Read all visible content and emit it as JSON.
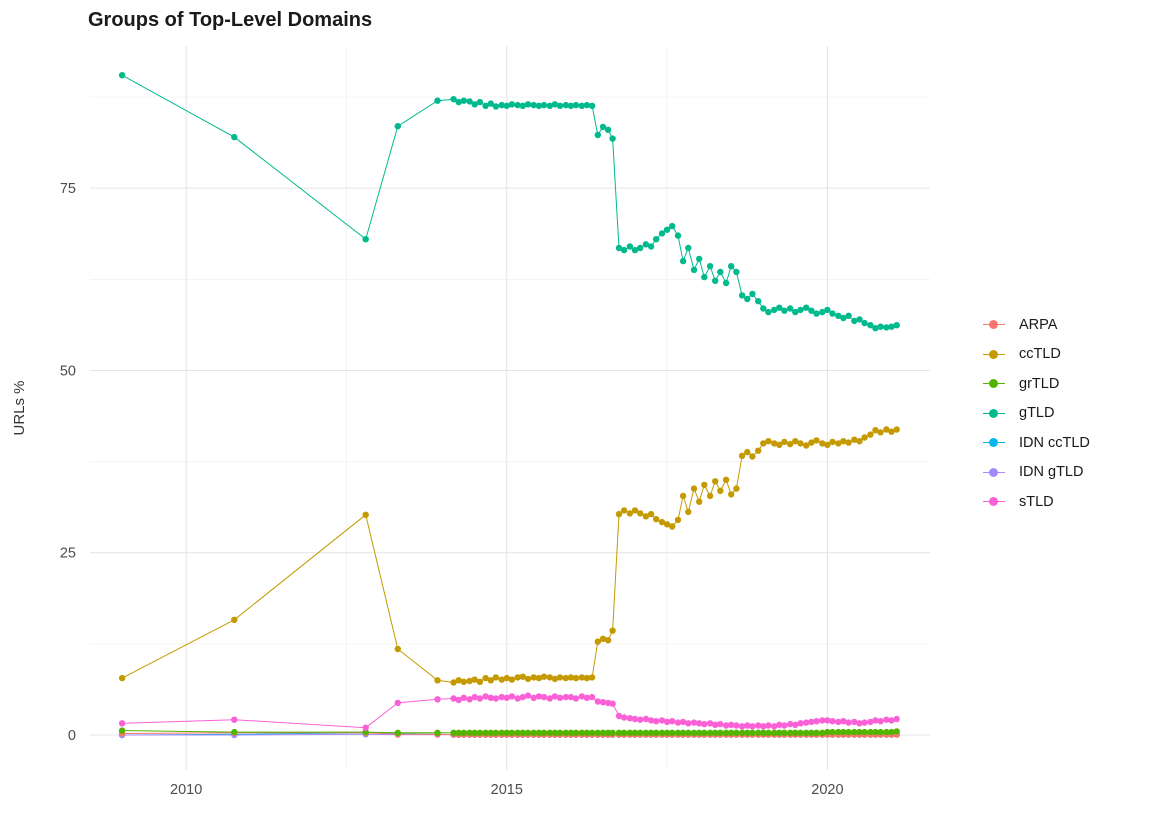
{
  "chart_data": {
    "type": "line",
    "title": "Groups of Top-Level Domains",
    "xlabel": "",
    "ylabel": "URLs %",
    "x_ticks": [
      2010,
      2015,
      2020
    ],
    "y_ticks": [
      0,
      25,
      50,
      75
    ],
    "x_minor_gridlines": [
      2012.5,
      2017.5
    ],
    "y_minor_gridlines": [
      12.5,
      37.5,
      62.5,
      87.5
    ],
    "xlim": [
      2008.5,
      2021.6
    ],
    "ylim": [
      -4.8,
      94.5
    ],
    "grid": true,
    "legend_position": "right",
    "marker": "circle",
    "x": [
      2009.0,
      2010.75,
      2012.8,
      2013.3,
      2013.92,
      2014.17,
      2014.25,
      2014.33,
      2014.42,
      2014.5,
      2014.58,
      2014.67,
      2014.75,
      2014.83,
      2014.92,
      2015.0,
      2015.08,
      2015.17,
      2015.25,
      2015.33,
      2015.42,
      2015.5,
      2015.58,
      2015.67,
      2015.75,
      2015.83,
      2015.92,
      2016.0,
      2016.08,
      2016.17,
      2016.25,
      2016.33,
      2016.42,
      2016.5,
      2016.58,
      2016.65,
      2016.75,
      2016.83,
      2016.92,
      2017.0,
      2017.08,
      2017.17,
      2017.25,
      2017.33,
      2017.42,
      2017.5,
      2017.58,
      2017.67,
      2017.75,
      2017.83,
      2017.92,
      2018.0,
      2018.08,
      2018.17,
      2018.25,
      2018.33,
      2018.42,
      2018.5,
      2018.58,
      2018.67,
      2018.75,
      2018.83,
      2018.92,
      2019.0,
      2019.08,
      2019.17,
      2019.25,
      2019.33,
      2019.42,
      2019.5,
      2019.58,
      2019.67,
      2019.75,
      2019.83,
      2019.92,
      2020.0,
      2020.08,
      2020.17,
      2020.25,
      2020.33,
      2020.42,
      2020.5,
      2020.58,
      2020.67,
      2020.75,
      2020.83,
      2020.92,
      2021.0,
      2021.08
    ],
    "series": [
      {
        "name": "ARPA",
        "color": "#F8766D",
        "values": [
          0.2,
          0.3,
          0.3,
          0.1,
          0.1,
          0.05,
          0.05,
          0.05,
          0.05,
          0.05,
          0.05,
          0.05,
          0.05,
          0.05,
          0.05,
          0.05,
          0.05,
          0.05,
          0.05,
          0.05,
          0.05,
          0.05,
          0.05,
          0.05,
          0.05,
          0.05,
          0.05,
          0.05,
          0.05,
          0.05,
          0.05,
          0.05,
          0.05,
          0.05,
          0.05,
          0.05,
          0.05,
          0.05,
          0.05,
          0.05,
          0.05,
          0.05,
          0.05,
          0.05,
          0.05,
          0.05,
          0.05,
          0.05,
          0.05,
          0.05,
          0.05,
          0.05,
          0.05,
          0.05,
          0.05,
          0.05,
          0.05,
          0.05,
          0.05,
          0.05,
          0.05,
          0.05,
          0.05,
          0.05,
          0.05,
          0.05,
          0.05,
          0.05,
          0.05,
          0.05,
          0.05,
          0.05,
          0.05,
          0.05,
          0.05,
          0.05,
          0.05,
          0.05,
          0.05,
          0.05,
          0.05,
          0.05,
          0.05,
          0.05,
          0.05,
          0.05,
          0.05,
          0.05,
          0.05
        ]
      },
      {
        "name": "ccTLD",
        "color": "#C49A00",
        "values": [
          7.8,
          15.8,
          30.2,
          11.8,
          7.5,
          7.2,
          7.5,
          7.3,
          7.4,
          7.6,
          7.3,
          7.8,
          7.5,
          7.9,
          7.6,
          7.8,
          7.6,
          7.9,
          8,
          7.7,
          7.9,
          7.8,
          8,
          7.9,
          7.7,
          7.9,
          7.8,
          7.9,
          7.8,
          7.9,
          7.8,
          7.9,
          12.8,
          13.2,
          13,
          14.3,
          30.3,
          30.8,
          30.4,
          30.8,
          30.4,
          30,
          30.3,
          29.6,
          29.2,
          28.9,
          28.6,
          29.5,
          32.8,
          30.6,
          33.8,
          32,
          34.3,
          32.8,
          34.8,
          33.5,
          35,
          33,
          33.8,
          38.3,
          38.8,
          38.2,
          39,
          40,
          40.3,
          40,
          39.8,
          40.2,
          39.9,
          40.3,
          40,
          39.7,
          40.1,
          40.4,
          40,
          39.8,
          40.2,
          40,
          40.3,
          40.1,
          40.5,
          40.3,
          40.8,
          41.2,
          41.8,
          41.5,
          41.9,
          41.6,
          41.9
        ]
      },
      {
        "name": "grTLD",
        "color": "#53B400",
        "values": [
          0.6,
          0.4,
          0.4,
          0.3,
          0.3,
          0.3,
          0.3,
          0.3,
          0.3,
          0.3,
          0.3,
          0.3,
          0.3,
          0.3,
          0.3,
          0.3,
          0.3,
          0.3,
          0.3,
          0.3,
          0.3,
          0.3,
          0.3,
          0.3,
          0.3,
          0.3,
          0.3,
          0.3,
          0.3,
          0.3,
          0.3,
          0.3,
          0.3,
          0.3,
          0.3,
          0.3,
          0.3,
          0.3,
          0.3,
          0.3,
          0.3,
          0.3,
          0.3,
          0.3,
          0.3,
          0.3,
          0.3,
          0.3,
          0.3,
          0.3,
          0.3,
          0.3,
          0.3,
          0.3,
          0.3,
          0.3,
          0.3,
          0.3,
          0.3,
          0.3,
          0.3,
          0.3,
          0.3,
          0.3,
          0.3,
          0.3,
          0.3,
          0.3,
          0.3,
          0.3,
          0.3,
          0.3,
          0.3,
          0.3,
          0.3,
          0.4,
          0.4,
          0.4,
          0.4,
          0.4,
          0.4,
          0.4,
          0.4,
          0.4,
          0.4,
          0.4,
          0.4,
          0.4,
          0.5
        ]
      },
      {
        "name": "gTLD",
        "color": "#00BA8E",
        "values": [
          90.5,
          82,
          68,
          83.5,
          87,
          87.2,
          86.8,
          87,
          86.9,
          86.5,
          86.8,
          86.3,
          86.6,
          86.2,
          86.4,
          86.3,
          86.5,
          86.4,
          86.3,
          86.5,
          86.4,
          86.3,
          86.4,
          86.3,
          86.5,
          86.3,
          86.4,
          86.3,
          86.4,
          86.3,
          86.4,
          86.3,
          82.3,
          83.4,
          83,
          81.8,
          66.8,
          66.5,
          67,
          66.5,
          66.8,
          67.3,
          67,
          68,
          68.8,
          69.3,
          69.8,
          68.5,
          65,
          66.8,
          63.8,
          65.3,
          62.8,
          64.3,
          62.3,
          63.5,
          62,
          64.3,
          63.5,
          60.3,
          59.8,
          60.5,
          59.5,
          58.5,
          58,
          58.3,
          58.6,
          58.2,
          58.5,
          58,
          58.3,
          58.6,
          58.2,
          57.8,
          58,
          58.3,
          57.8,
          57.5,
          57.2,
          57.5,
          56.8,
          57,
          56.5,
          56.2,
          55.8,
          56,
          55.9,
          56,
          56.2
        ]
      },
      {
        "name": "IDN ccTLD",
        "color": "#00B6EB",
        "values": [
          0,
          0.1,
          0.3,
          0.2,
          0.1,
          0.05,
          0.05,
          0.05,
          0.05,
          0.05,
          0.05,
          0.05,
          0.05,
          0.05,
          0.05,
          0.05,
          0.05,
          0.05,
          0.05,
          0.05,
          0.05,
          0.05,
          0.05,
          0.05,
          0.05,
          0.05,
          0.05,
          0.05,
          0.05,
          0.05,
          0.05,
          0.05,
          0.05,
          0.05,
          0.05,
          0.05,
          0.05,
          0.05,
          0.05,
          0.05,
          0.05,
          0.05,
          0.05,
          0.05,
          0.05,
          0.05,
          0.05,
          0.05,
          0.05,
          0.05,
          0.05,
          0.05,
          0.05,
          0.05,
          0.05,
          0.05,
          0.05,
          0.05,
          0.05,
          0.05,
          0.05,
          0.05,
          0.05,
          0.05,
          0.05,
          0.05,
          0.05,
          0.05,
          0.05,
          0.05,
          0.05,
          0.05,
          0.05,
          0.05,
          0.05,
          0.05,
          0.05,
          0.05,
          0.05,
          0.05,
          0.05,
          0.05,
          0.05,
          0.05,
          0.05,
          0.05,
          0.05,
          0.05,
          0.05
        ]
      },
      {
        "name": "IDN gTLD",
        "color": "#A58AFF",
        "values": [
          0,
          0,
          0.1,
          0.05,
          0.05,
          0.05,
          0.05,
          0.05,
          0.05,
          0.05,
          0.05,
          0.05,
          0.05,
          0.05,
          0.05,
          0.05,
          0.05,
          0.05,
          0.05,
          0.05,
          0.05,
          0.05,
          0.05,
          0.05,
          0.05,
          0.05,
          0.05,
          0.05,
          0.05,
          0.05,
          0.05,
          0.05,
          0.05,
          0.05,
          0.05,
          0.05,
          0.1,
          0.1,
          0.1,
          0.1,
          0.1,
          0.1,
          0.1,
          0.1,
          0.1,
          0.1,
          0.1,
          0.1,
          0.1,
          0.1,
          0.1,
          0.1,
          0.1,
          0.1,
          0.1,
          0.1,
          0.1,
          0.1,
          0.1,
          0.1,
          0.1,
          0.1,
          0.1,
          0.1,
          0.1,
          0.1,
          0.1,
          0.1,
          0.1,
          0.1,
          0.1,
          0.1,
          0.1,
          0.1,
          0.1,
          0.1,
          0.1,
          0.1,
          0.1,
          0.1,
          0.1,
          0.1,
          0.1,
          0.1,
          0.1,
          0.1,
          0.1,
          0.1,
          0.1
        ]
      },
      {
        "name": "sTLD",
        "color": "#FB61D7",
        "values": [
          1.6,
          2.1,
          1,
          4.4,
          4.9,
          5,
          4.8,
          5.1,
          4.9,
          5.2,
          5,
          5.3,
          5.1,
          5,
          5.2,
          5.1,
          5.3,
          5,
          5.2,
          5.4,
          5.1,
          5.3,
          5.2,
          5,
          5.3,
          5.1,
          5.2,
          5.2,
          5,
          5.3,
          5.1,
          5.2,
          4.6,
          4.5,
          4.4,
          4.3,
          2.6,
          2.4,
          2.3,
          2.2,
          2.1,
          2.2,
          2,
          1.9,
          2,
          1.8,
          1.9,
          1.7,
          1.8,
          1.6,
          1.7,
          1.6,
          1.5,
          1.6,
          1.4,
          1.5,
          1.3,
          1.4,
          1.3,
          1.2,
          1.3,
          1.2,
          1.3,
          1.2,
          1.3,
          1.2,
          1.4,
          1.3,
          1.5,
          1.4,
          1.6,
          1.7,
          1.8,
          1.9,
          2,
          2,
          1.9,
          1.8,
          1.9,
          1.7,
          1.8,
          1.6,
          1.7,
          1.8,
          2,
          1.9,
          2.1,
          2,
          2.2
        ]
      }
    ],
    "draw_order": [
      "IDN ccTLD",
      "IDN gTLD",
      "ARPA",
      "ccTLD",
      "gTLD",
      "grTLD",
      "sTLD"
    ],
    "colors": {
      "grid_major": "#e4e4e4",
      "grid_minor": "#f1f1f1",
      "tick_text": "#4d4d4d",
      "title_text": "#1a1a1a"
    }
  }
}
